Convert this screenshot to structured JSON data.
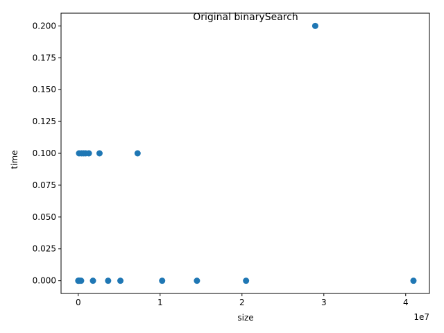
{
  "chart_data": {
    "type": "scatter",
    "title": "Original binarySearch",
    "xlabel": "size",
    "ylabel": "time",
    "x_offset_label": "1e7",
    "xlim": [
      -2100000,
      42900000
    ],
    "ylim": [
      -0.01,
      0.21
    ],
    "x_ticks": [
      0,
      10000000,
      20000000,
      30000000,
      40000000
    ],
    "x_tick_labels": [
      "0",
      "1",
      "2",
      "3",
      "4"
    ],
    "y_ticks": [
      0,
      0.025,
      0.05,
      0.075,
      0.1,
      0.125,
      0.15,
      0.175,
      0.2
    ],
    "y_tick_labels": [
      "0.000",
      "0.025",
      "0.050",
      "0.075",
      "0.100",
      "0.125",
      "0.150",
      "0.175",
      "0.200"
    ],
    "grid": false,
    "marker_color": "#1f77b4",
    "points": [
      {
        "x": 5000,
        "y": 0.0
      },
      {
        "x": 20000,
        "y": 0.0
      },
      {
        "x": 50000,
        "y": 0.0
      },
      {
        "x": 100000,
        "y": 0.0
      },
      {
        "x": 200000,
        "y": 0.0
      },
      {
        "x": 350000,
        "y": 0.0
      },
      {
        "x": 100000,
        "y": 0.1
      },
      {
        "x": 400000,
        "y": 0.1
      },
      {
        "x": 650000,
        "y": 0.1
      },
      {
        "x": 900000,
        "y": 0.1
      },
      {
        "x": 1300000,
        "y": 0.1
      },
      {
        "x": 1800000,
        "y": 0.0
      },
      {
        "x": 2600000,
        "y": 0.1
      },
      {
        "x": 3650000,
        "y": 0.0
      },
      {
        "x": 5150000,
        "y": 0.0
      },
      {
        "x": 7250000,
        "y": 0.1
      },
      {
        "x": 10250000,
        "y": 0.0
      },
      {
        "x": 14500000,
        "y": 0.0
      },
      {
        "x": 20500000,
        "y": 0.0
      },
      {
        "x": 28950000,
        "y": 0.2
      },
      {
        "x": 40950000,
        "y": 0.0
      }
    ]
  }
}
